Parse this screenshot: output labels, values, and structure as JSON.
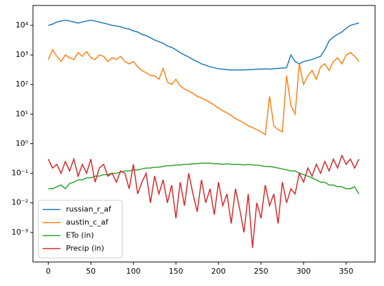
{
  "chart_data": {
    "type": "line",
    "log_scale_y": true,
    "legend_position": "lower left",
    "x": [
      0,
      5,
      10,
      15,
      20,
      25,
      30,
      35,
      40,
      45,
      50,
      55,
      60,
      65,
      70,
      75,
      80,
      85,
      90,
      95,
      100,
      105,
      110,
      115,
      120,
      125,
      130,
      135,
      140,
      145,
      150,
      155,
      160,
      165,
      170,
      175,
      180,
      185,
      190,
      195,
      200,
      205,
      210,
      215,
      220,
      225,
      230,
      235,
      240,
      245,
      250,
      255,
      260,
      265,
      270,
      275,
      280,
      285,
      290,
      295,
      300,
      305,
      310,
      315,
      320,
      325,
      330,
      335,
      340,
      345,
      350,
      355,
      360,
      365
    ],
    "series": [
      {
        "name": "russian_r_af",
        "color": "#1f77b4",
        "values": [
          10000,
          11000,
          13000,
          14000,
          15000,
          14000,
          13000,
          12000,
          13000,
          14000,
          15000,
          14000,
          13000,
          12000,
          11000,
          10000,
          9500,
          9000,
          8000,
          7500,
          6500,
          6000,
          5000,
          4500,
          3800,
          3200,
          2800,
          2500,
          2000,
          1800,
          1500,
          1200,
          1000,
          850,
          700,
          600,
          500,
          450,
          400,
          370,
          340,
          330,
          320,
          310,
          310,
          310,
          310,
          320,
          320,
          330,
          330,
          340,
          330,
          340,
          350,
          360,
          370,
          1000,
          600,
          500,
          600,
          650,
          700,
          800,
          900,
          1500,
          3000,
          4000,
          5000,
          6000,
          8000,
          10000,
          11000,
          12000
        ]
      },
      {
        "name": "austin_c_af",
        "color": "#ff7f0e",
        "values": [
          700,
          1500,
          900,
          600,
          1000,
          800,
          700,
          1200,
          900,
          1300,
          800,
          700,
          1000,
          900,
          600,
          800,
          700,
          900,
          600,
          500,
          600,
          400,
          300,
          250,
          200,
          200,
          150,
          350,
          120,
          100,
          150,
          90,
          70,
          60,
          50,
          40,
          35,
          30,
          25,
          20,
          16,
          13,
          11,
          9,
          7,
          6,
          5,
          4,
          3.5,
          3,
          2.5,
          2,
          40,
          4,
          3,
          2.5,
          200,
          20,
          10,
          500,
          100,
          200,
          300,
          150,
          400,
          500,
          300,
          600,
          800,
          500,
          1000,
          1200,
          900,
          600
        ]
      },
      {
        "name": "ETo (in)",
        "color": "#2ca02c",
        "values": [
          0.03,
          0.03,
          0.035,
          0.04,
          0.03,
          0.045,
          0.05,
          0.06,
          0.06,
          0.07,
          0.07,
          0.08,
          0.08,
          0.09,
          0.09,
          0.1,
          0.1,
          0.11,
          0.12,
          0.12,
          0.13,
          0.13,
          0.14,
          0.15,
          0.15,
          0.16,
          0.16,
          0.17,
          0.18,
          0.18,
          0.19,
          0.19,
          0.2,
          0.2,
          0.21,
          0.21,
          0.22,
          0.22,
          0.22,
          0.21,
          0.21,
          0.2,
          0.21,
          0.2,
          0.2,
          0.2,
          0.19,
          0.2,
          0.19,
          0.19,
          0.18,
          0.17,
          0.17,
          0.16,
          0.15,
          0.14,
          0.13,
          0.12,
          0.12,
          0.1,
          0.09,
          0.08,
          0.07,
          0.06,
          0.05,
          0.05,
          0.04,
          0.04,
          0.035,
          0.035,
          0.03,
          0.03,
          0.035,
          0.02
        ]
      },
      {
        "name": "Precip (in)",
        "color": "#d62728",
        "values": [
          0.3,
          0.15,
          0.2,
          0.1,
          0.25,
          0.12,
          0.3,
          0.08,
          0.2,
          0.1,
          0.3,
          0.05,
          0.15,
          0.2,
          0.08,
          0.1,
          0.05,
          0.12,
          0.1,
          0.03,
          0.2,
          0.02,
          0.05,
          0.1,
          0.01,
          0.08,
          0.02,
          0.06,
          0.01,
          0.04,
          0.003,
          0.05,
          0.008,
          0.1,
          0.02,
          0.005,
          0.06,
          0.01,
          0.03,
          0.004,
          0.05,
          0.008,
          0.02,
          0.002,
          0.03,
          0.006,
          0.001,
          0.02,
          0.0003,
          0.01,
          0.003,
          0.04,
          0.008,
          0.02,
          0.002,
          0.05,
          0.01,
          0.03,
          0.02,
          0.1,
          0.05,
          0.15,
          0.08,
          0.2,
          0.1,
          0.25,
          0.12,
          0.3,
          0.15,
          0.4,
          0.2,
          0.3,
          0.15,
          0.3
        ]
      }
    ],
    "xlim": [
      -18,
      384
    ],
    "xticks": [
      0,
      50,
      100,
      150,
      200,
      250,
      300,
      350
    ],
    "ylim": [
      0.0001,
      47000
    ],
    "yticks": [
      {
        "value": 0.001,
        "label": "10⁻³"
      },
      {
        "value": 0.01,
        "label": "10⁻²"
      },
      {
        "value": 0.1,
        "label": "10⁻¹"
      },
      {
        "value": 1,
        "label": "10⁰"
      },
      {
        "value": 10,
        "label": "10¹"
      },
      {
        "value": 100,
        "label": "10²"
      },
      {
        "value": 1000,
        "label": "10³"
      },
      {
        "value": 10000,
        "label": "10⁴"
      }
    ]
  }
}
